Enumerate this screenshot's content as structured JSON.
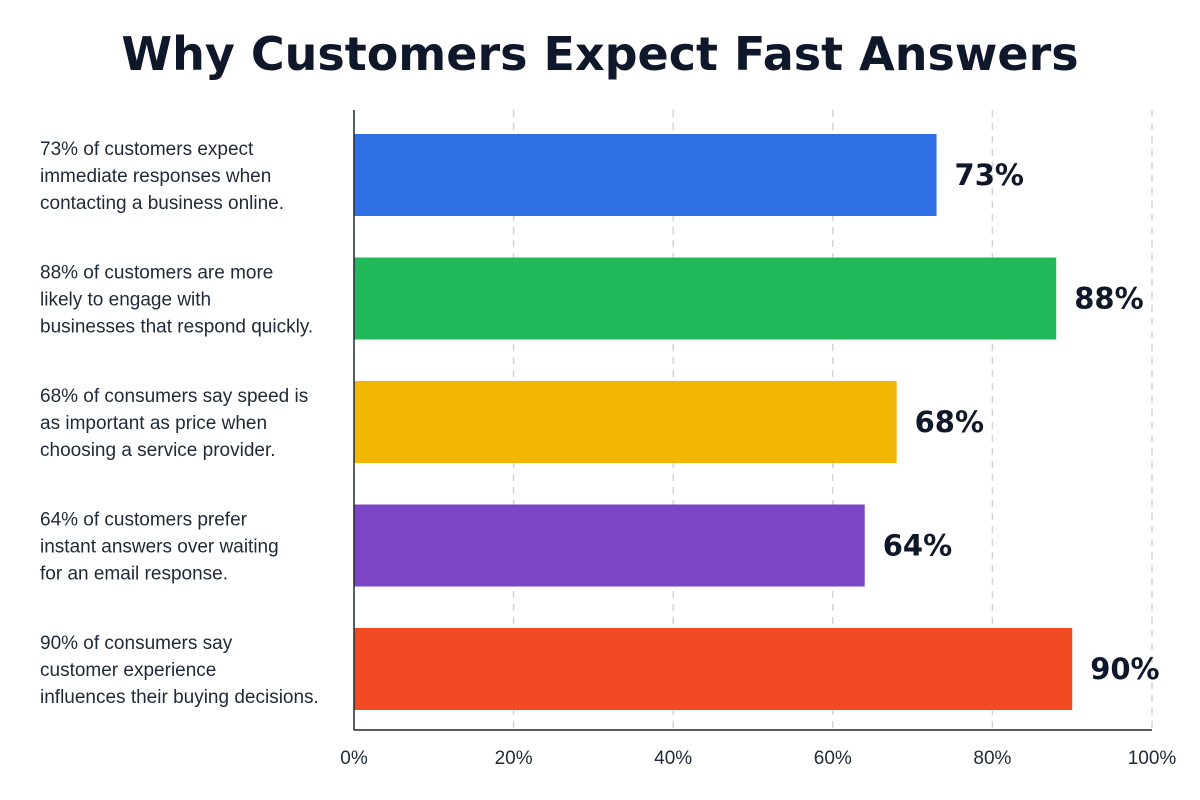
{
  "chart_data": {
    "type": "bar",
    "orientation": "horizontal",
    "title": "Why Customers Expect Fast Answers",
    "categories": [
      "73% of customers expect immediate responses when contacting a business online.",
      "88% of customers are more likely to engage with businesses that respond quickly.",
      "68% of consumers say speed is as important as price when choosing a service provider.",
      "64% of customers prefer instant answers over waiting for an email response.",
      "90% of consumers say customer experience influences their buying decisions."
    ],
    "category_lines": [
      [
        "73% of customers expect",
        "immediate responses when",
        "contacting a business online."
      ],
      [
        "88% of customers are more",
        "likely to engage with",
        "businesses that respond quickly."
      ],
      [
        "68% of consumers say speed is",
        "as important as price when",
        "choosing a service provider."
      ],
      [
        "64% of customers prefer",
        "instant answers over waiting",
        "for an email response."
      ],
      [
        "90% of consumers say",
        "customer experience",
        "influences their buying decisions."
      ]
    ],
    "values": [
      73,
      88,
      68,
      64,
      90
    ],
    "value_labels": [
      "73%",
      "88%",
      "68%",
      "64%",
      "90%"
    ],
    "colors": [
      "#2f6fe4",
      "#22b95a",
      "#f2b705",
      "#7c45c6",
      "#f24a22"
    ],
    "xlim": [
      0,
      100
    ],
    "x_ticks": [
      0,
      20,
      40,
      60,
      80,
      100
    ],
    "x_tick_labels": [
      "0%",
      "20%",
      "40%",
      "60%",
      "80%",
      "100%"
    ],
    "xlabel": "",
    "ylabel": "",
    "grid": true,
    "legend": "none"
  }
}
